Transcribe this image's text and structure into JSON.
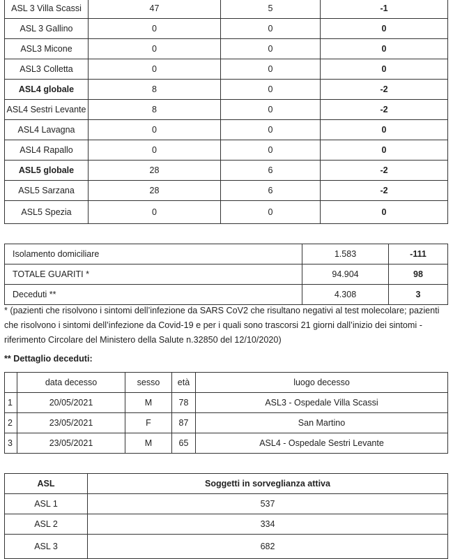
{
  "asl_table": {
    "rows": [
      [
        "ASL 3 Villa Scassi",
        "47",
        "5",
        "-1"
      ],
      [
        "ASL 3 Gallino",
        "0",
        "0",
        "0"
      ],
      [
        "ASL3 Micone",
        "0",
        "0",
        "0"
      ],
      [
        "ASL3 Colletta",
        "0",
        "0",
        "0"
      ],
      [
        "ASL4 globale",
        "8",
        "0",
        "-2"
      ],
      [
        "ASL4 Sestri Levante",
        "8",
        "0",
        "-2"
      ],
      [
        "ASL4 Lavagna",
        "0",
        "0",
        "0"
      ],
      [
        "ASL4 Rapallo",
        "0",
        "0",
        "0"
      ],
      [
        "ASL5 globale",
        "28",
        "6",
        "-2"
      ],
      [
        "ASL5 Sarzana",
        "28",
        "6",
        "-2"
      ],
      [
        "ASL5 Spezia",
        "0",
        "0",
        "0"
      ]
    ]
  },
  "summary_table": {
    "rows": [
      [
        "Isolamento domiciliare",
        "1.583",
        "-111"
      ],
      [
        "TOTALE GUARITI *",
        "94.904",
        "98"
      ],
      [
        "Deceduti **",
        "4.308",
        "3"
      ]
    ]
  },
  "footnote": {
    "lines": [
      "*  (pazienti che risolvono i sintomi dell’infezione da SARS CoV2 che risultano negativi al test molecolare; pazienti",
      "che risolvono i sintomi dell’infezione da Covid-19 e per i quali sono trascorsi 21 giorni dall’inizio dei sintomi -",
      "riferimento Circolare del Ministero della Salute n.32850 del 12/10/2020)"
    ]
  },
  "deaths_heading": "** Dettaglio deceduti:",
  "deaths_table": {
    "header": [
      "data decesso",
      "sesso",
      "età",
      "luogo decesso"
    ],
    "rows": [
      [
        "1",
        "20/05/2021",
        "M",
        "78",
        "ASL3 - Ospedale Villa Scassi"
      ],
      [
        "2",
        "23/05/2021",
        "F",
        "87",
        "San Martino"
      ],
      [
        "3",
        "23/05/2021",
        "M",
        "65",
        "ASL4 - Ospedale Sestri Levante"
      ]
    ]
  },
  "surveillance_table": {
    "header": [
      "ASL",
      "Soggetti in sorveglianza attiva"
    ],
    "rows": [
      [
        "ASL 1",
        "537"
      ],
      [
        "ASL 2",
        "334"
      ],
      [
        "ASL 3",
        "682"
      ]
    ]
  }
}
